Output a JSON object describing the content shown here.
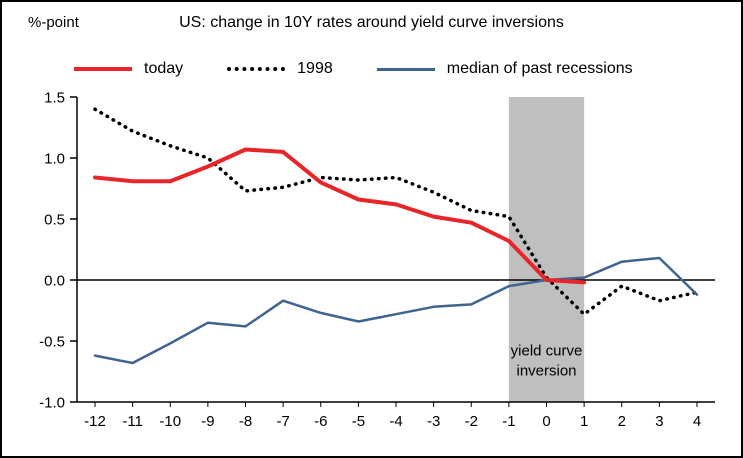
{
  "chart_data": {
    "type": "line",
    "title": "US: change in 10Y rates around yield curve inversions",
    "ylabel": "%-point",
    "xlabel": "",
    "grid": false,
    "legend_position": "top",
    "ylim": [
      -1.0,
      1.5
    ],
    "y_ticks": [
      1.5,
      1.0,
      0.5,
      0.0,
      -0.5,
      -1.0
    ],
    "y_tick_labels": [
      "1.5",
      "1.0",
      "0.5",
      "0.0",
      "-0.5",
      "-1.0"
    ],
    "x": [
      -12,
      -11,
      -10,
      -9,
      -8,
      -7,
      -6,
      -5,
      -4,
      -3,
      -2,
      -1,
      0,
      1,
      2,
      3,
      4
    ],
    "x_tick_labels": [
      "-12",
      "-11",
      "-10",
      "-9",
      "-8",
      "-7",
      "-6",
      "-5",
      "-4",
      "-3",
      "-2",
      "-1",
      "0",
      "1",
      "2",
      "3",
      "4"
    ],
    "band": {
      "from": -1,
      "to": 1,
      "color": "#bfbfbf"
    },
    "annotation": {
      "lines": [
        "yield curve",
        "inversion"
      ],
      "x": 0,
      "y": -0.62
    },
    "zero_line_color": "#000000",
    "series": [
      {
        "name": "today",
        "color": "#e8262a",
        "dash": "solid",
        "width": 4,
        "z": 3,
        "values": [
          0.84,
          0.81,
          0.81,
          0.93,
          1.07,
          1.05,
          0.8,
          0.66,
          0.62,
          0.52,
          0.47,
          0.32,
          0.0,
          -0.02,
          null,
          null,
          null
        ]
      },
      {
        "name": "1998",
        "color": "#000000",
        "dash": "dotted",
        "width": 3.5,
        "z": 1,
        "values": [
          1.4,
          1.22,
          1.1,
          1.0,
          0.73,
          0.76,
          0.84,
          0.82,
          0.84,
          0.72,
          0.57,
          0.52,
          0.02,
          -0.28,
          -0.05,
          -0.17,
          -0.1
        ]
      },
      {
        "name": "median of past recessions",
        "color": "#3e6490",
        "dash": "solid",
        "width": 2.5,
        "z": 2,
        "values": [
          -0.62,
          -0.68,
          -0.52,
          -0.35,
          -0.38,
          -0.17,
          -0.27,
          -0.34,
          -0.28,
          -0.22,
          -0.2,
          -0.05,
          0.0,
          0.02,
          0.15,
          0.18,
          -0.12
        ]
      }
    ]
  }
}
